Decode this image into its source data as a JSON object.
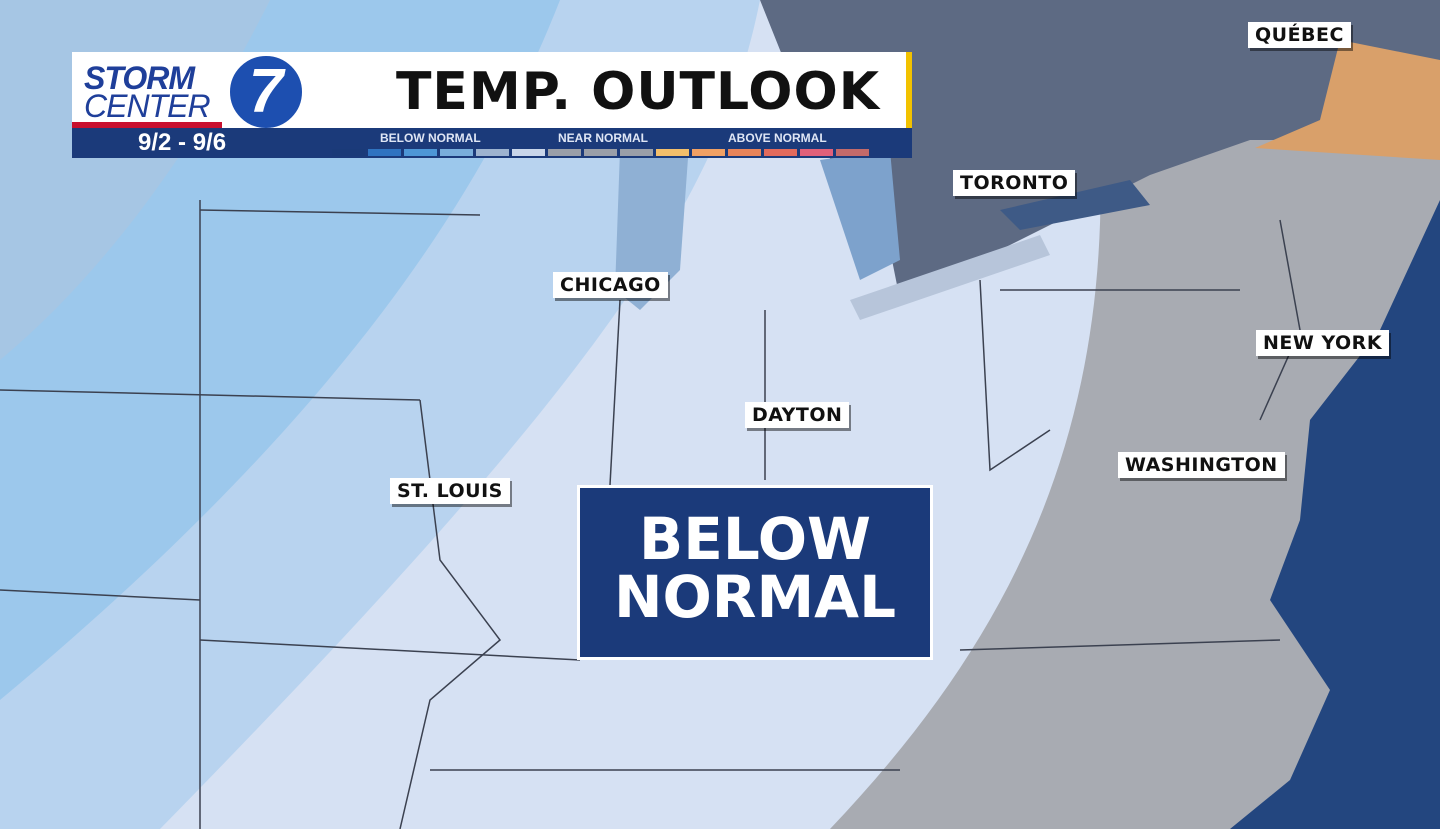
{
  "header": {
    "logo": {
      "line1": "STORM",
      "line2": "CENTER",
      "number": "7"
    },
    "title": "TEMP. OUTLOOK",
    "dates": "9/2 - 9/6",
    "legend": {
      "below_label": "BELOW NORMAL",
      "near_label": "NEAR NORMAL",
      "above_label": "ABOVE NORMAL",
      "colors": [
        "#1a3a78",
        "#2f73c0",
        "#4d97d6",
        "#79aedb",
        "#9db3cf",
        "#c9d6ea",
        "#9a9fa8",
        "#9a9fa8",
        "#9a9fa8",
        "#f3bf6b",
        "#f0a064",
        "#e8845a",
        "#e26a5c",
        "#e0607a",
        "#c36a6a"
      ]
    },
    "accent": "#f2c200"
  },
  "cities": {
    "quebec": "QUÉBEC",
    "toronto": "TORONTO",
    "chicago": "CHICAGO",
    "new_york": "NEW YORK",
    "dayton": "DAYTON",
    "washington": "WASHINGTON",
    "st_louis": "ST. LOUIS"
  },
  "banner": {
    "line1": "BELOW",
    "line2": "NORMAL"
  },
  "colors": {
    "ocean": "#23467f",
    "canada": "#5d6a83",
    "near_normal": "#9a9fa8",
    "below_normal_light": "#c3d6ee",
    "below_normal": "#8dbde6",
    "above_normal": "#d9a06a"
  }
}
